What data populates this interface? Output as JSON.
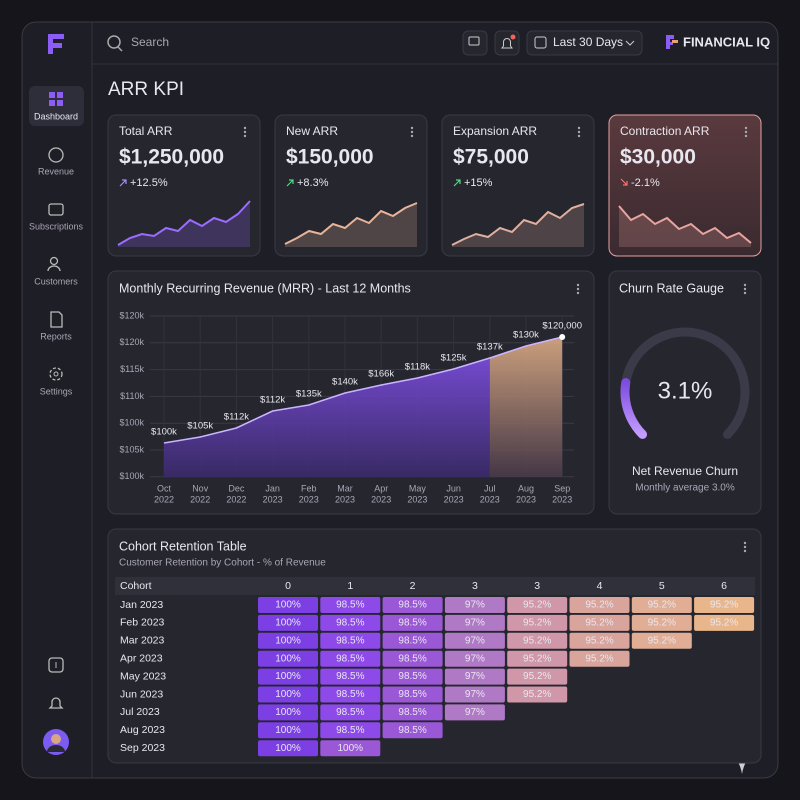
{
  "sidebar": {
    "nav": [
      "Dashboard",
      "Revenue",
      "Subscriptions",
      "Customers",
      "Reports",
      "Settings"
    ]
  },
  "topbar": {
    "search": "Search",
    "date_range": "Last 30 Days",
    "brand": "FINANCIAL IQ"
  },
  "page_title": "ARR KPI",
  "kpis": [
    {
      "title": "Total ARR",
      "value": "$1,250,000",
      "change": "+12.5%"
    },
    {
      "title": "New ARR",
      "value": "$150,000",
      "change": "+8.3%"
    },
    {
      "title": "Expansion ARR",
      "value": "$75,000",
      "change": "+15%"
    },
    {
      "title": "Contraction ARR",
      "value": "$30,000",
      "change": "-2.1%"
    }
  ],
  "mrr": {
    "title": "Monthly Recurring Revenue (MRR) - Last 12 Months",
    "y_labels": [
      "$120k",
      "$120k",
      "$115k",
      "$110k",
      "$100k",
      "$105k",
      "$100k"
    ],
    "months": [
      "Oct",
      "Nov",
      "Dec",
      "Jan",
      "Feb",
      "Mar",
      "Apr",
      "May",
      "Jun",
      "Jul",
      "Aug",
      "Sep"
    ],
    "years": [
      "2022",
      "2022",
      "2022",
      "2023",
      "2023",
      "2023",
      "2023",
      "2023",
      "2023",
      "2023",
      "2023",
      "2023"
    ],
    "point_labels": [
      "$100k",
      "$105k",
      "$112k",
      "$112k",
      "$135k",
      "$140k",
      "$166k",
      "$118k",
      "$125k",
      "$137k",
      "$130k",
      "$120,000"
    ]
  },
  "churn": {
    "title": "Churn Rate Gauge",
    "value": "3.1%",
    "label": "Net Revenue Churn",
    "note": "Monthly average 3.0%"
  },
  "cohort": {
    "title": "Cohort Retention Table",
    "subtitle": "Customer Retention by Cohort - % of Revenue",
    "header": [
      "Cohort",
      "0",
      "1",
      "2",
      "3",
      "3",
      "4",
      "5",
      "6"
    ],
    "rows": [
      {
        "label": "Jan 2023",
        "cells": [
          "100%",
          "98.5%",
          "98.5%",
          "97%",
          "95.2%",
          "95.2%",
          "95.2%",
          "95.2%"
        ]
      },
      {
        "label": "Feb 2023",
        "cells": [
          "100%",
          "98.5%",
          "98.5%",
          "97%",
          "95.2%",
          "95.2%",
          "95.2%",
          "95.2%"
        ]
      },
      {
        "label": "Mar 2023",
        "cells": [
          "100%",
          "98.5%",
          "98.5%",
          "97%",
          "95.2%",
          "95.2%",
          "95.2%"
        ]
      },
      {
        "label": "Apr 2023",
        "cells": [
          "100%",
          "98.5%",
          "98.5%",
          "97%",
          "95.2%",
          "95.2%"
        ]
      },
      {
        "label": "May 2023",
        "cells": [
          "100%",
          "98.5%",
          "98.5%",
          "97%",
          "95.2%"
        ]
      },
      {
        "label": "Jun 2023",
        "cells": [
          "100%",
          "98.5%",
          "98.5%",
          "97%",
          "95.2%"
        ]
      },
      {
        "label": "Jul 2023",
        "cells": [
          "100%",
          "98.5%",
          "98.5%",
          "97%"
        ]
      },
      {
        "label": "Aug 2023",
        "cells": [
          "100%",
          "98.5%",
          "98.5%"
        ]
      },
      {
        "label": "Sep 2023",
        "cells": [
          "100%",
          "100%"
        ]
      }
    ]
  }
}
